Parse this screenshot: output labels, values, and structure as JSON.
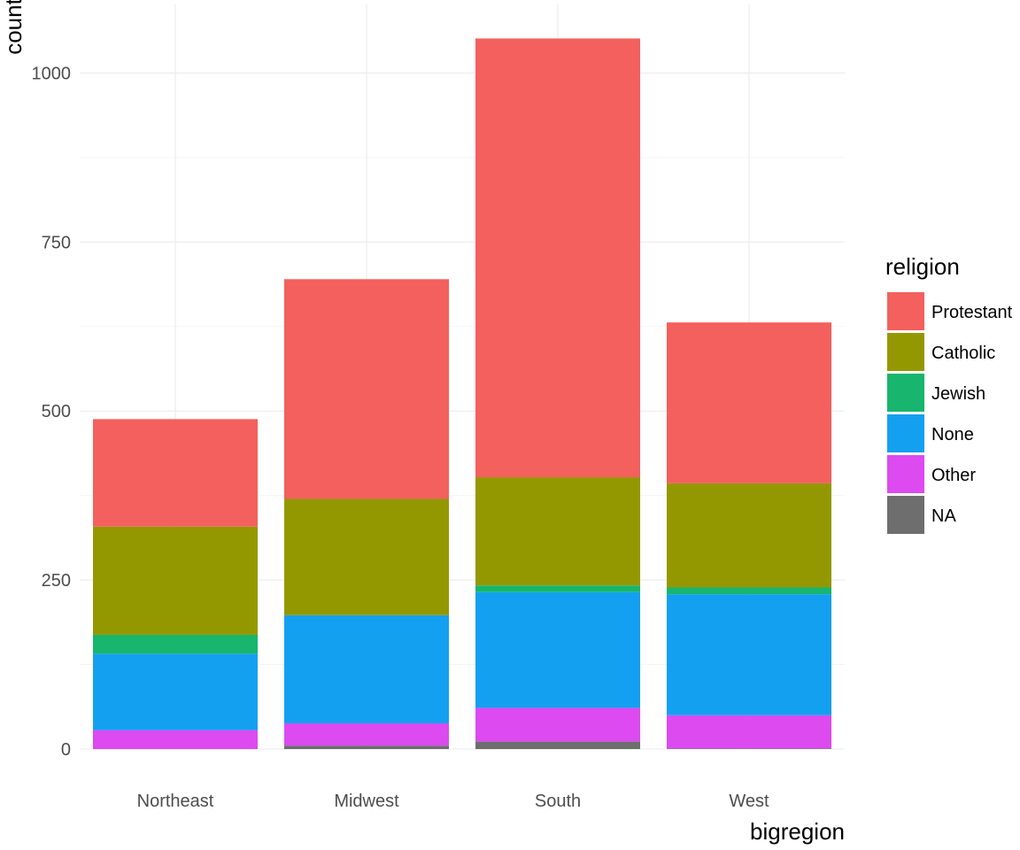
{
  "chart_data": {
    "type": "bar",
    "stacked": true,
    "xlabel": "bigregion",
    "ylabel": "count",
    "categories": [
      "Northeast",
      "Midwest",
      "South",
      "West"
    ],
    "ylim": [
      0,
      1050
    ],
    "yticks": [
      0,
      250,
      500,
      750,
      1000
    ],
    "grid": true,
    "legend": {
      "title": "religion",
      "position": "right"
    },
    "series": [
      {
        "name": "NA",
        "color": "#6e6e6e",
        "values": [
          0,
          5,
          11,
          1
        ]
      },
      {
        "name": "Other",
        "color": "#dc4af0",
        "values": [
          28,
          33,
          50,
          49
        ]
      },
      {
        "name": "None",
        "color": "#14a0f0",
        "values": [
          113,
          160,
          171,
          179
        ]
      },
      {
        "name": "Jewish",
        "color": "#18b56e",
        "values": [
          28,
          0,
          10,
          10
        ]
      },
      {
        "name": "Catholic",
        "color": "#949800",
        "values": [
          160,
          172,
          160,
          154
        ]
      },
      {
        "name": "Protestant",
        "color": "#f3605d",
        "values": [
          159,
          325,
          649,
          238
        ]
      }
    ],
    "legend_order": [
      "Protestant",
      "Catholic",
      "Jewish",
      "None",
      "Other",
      "NA"
    ]
  }
}
